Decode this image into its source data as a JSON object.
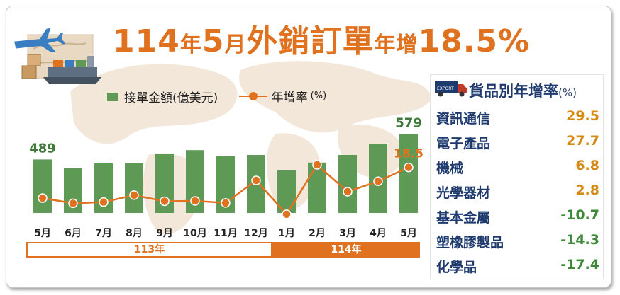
{
  "title": {
    "p1": "114",
    "p2": "年",
    "p3": "5",
    "p4": "月",
    "p5": "外銷訂單",
    "p6": "年增",
    "p7": "18.5%"
  },
  "legend": {
    "bars": "接單金額(億美元)",
    "line": "年增率",
    "line_unit": "(%)"
  },
  "colors": {
    "bar": "#5e9a55",
    "line": "#e0711f",
    "title": "#e0711f",
    "panel_text": "#1e3a6e",
    "positive": "#d48a14",
    "negative": "#3e8a3a"
  },
  "chart_data": {
    "type": "bar",
    "categories": [
      "5月",
      "6月",
      "7月",
      "8月",
      "9月",
      "10月",
      "11月",
      "12月",
      "1月",
      "2月",
      "3月",
      "4月",
      "5月"
    ],
    "series": [
      {
        "name": "接單金額(億美元)",
        "type": "bar",
        "values": [
          489,
          458,
          475,
          476,
          510,
          522,
          500,
          505,
          450,
          478,
          505,
          545,
          579
        ]
      },
      {
        "name": "年增率(%)",
        "type": "line",
        "values": [
          0.8,
          -2.2,
          -1.5,
          2.5,
          -1.0,
          -0.8,
          -2.0,
          11.0,
          -8.5,
          20.0,
          4.5,
          10.5,
          18.5
        ]
      }
    ],
    "value_labels": {
      "first_bar": "489",
      "last_bar": "579",
      "last_point": "18.5"
    },
    "year_groups": [
      {
        "label": "113年",
        "start": 0,
        "end": 7
      },
      {
        "label": "114年",
        "start": 8,
        "end": 12
      }
    ]
  },
  "panel": {
    "title": "貨品別年增率",
    "unit": "(%)",
    "truck_label": "EXPORT",
    "items": [
      {
        "name": "資訊通信",
        "value": "29.5"
      },
      {
        "name": "電子產品",
        "value": "27.7"
      },
      {
        "name": "機械",
        "value": "6.8"
      },
      {
        "name": "光學器材",
        "value": "2.8"
      },
      {
        "name": "基本金屬",
        "value": "-10.7"
      },
      {
        "name": "塑橡膠製品",
        "value": "-14.3"
      },
      {
        "name": "化學品",
        "value": "-17.4"
      }
    ]
  }
}
